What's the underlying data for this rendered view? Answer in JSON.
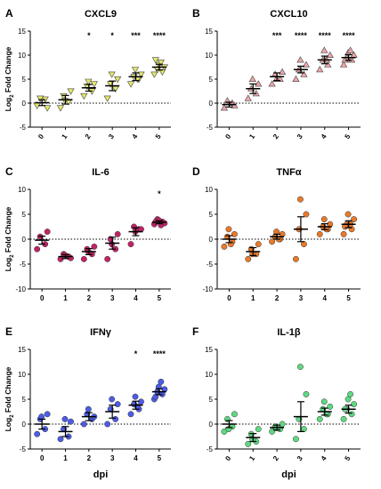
{
  "figure": {
    "xlabel_bottom": "dpi"
  },
  "chart_data": [
    {
      "panel": "A",
      "title": "CXCL9",
      "type": "scatter",
      "ylabel": "Log2 Fold Change",
      "ylim": [
        -5,
        15
      ],
      "yticks": [
        -5,
        0,
        5,
        10,
        15
      ],
      "categories": [
        "0",
        "1",
        "2",
        "3",
        "4",
        "5"
      ],
      "marker": "triangle-down",
      "color": "#e3e66a",
      "significance": [
        "",
        "",
        "*",
        "*",
        "***",
        "****"
      ],
      "means": [
        0.1,
        0.7,
        3.2,
        3.6,
        5.5,
        7.5
      ],
      "sem": [
        0.6,
        0.9,
        0.7,
        1.0,
        0.8,
        0.6
      ],
      "points": [
        [
          -0.5,
          0.8,
          1.0,
          -1.0
        ],
        [
          -1.0,
          0.3,
          1.5,
          2.5,
          0.5
        ],
        [
          1.5,
          2.5,
          3.5,
          4.0,
          4.5
        ],
        [
          1.0,
          3.0,
          4.0,
          5.0,
          6.0
        ],
        [
          4.0,
          5.0,
          5.5,
          6.0,
          7.0,
          5.0
        ],
        [
          6.0,
          6.5,
          7.0,
          7.5,
          8.0,
          8.5,
          9.0
        ]
      ]
    },
    {
      "panel": "B",
      "title": "CXCL10",
      "type": "scatter",
      "ylabel": "",
      "ylim": [
        -5,
        15
      ],
      "yticks": [
        -5,
        0,
        5,
        10,
        15
      ],
      "categories": [
        "0",
        "1",
        "2",
        "3",
        "4",
        "5"
      ],
      "marker": "triangle-up",
      "color": "#eea6aa",
      "significance": [
        "",
        "",
        "***",
        "****",
        "****",
        "****"
      ],
      "means": [
        -0.3,
        3.0,
        5.5,
        7.0,
        9.0,
        9.5
      ],
      "sem": [
        0.5,
        1.0,
        0.8,
        0.7,
        0.8,
        0.6
      ],
      "points": [
        [
          -1.0,
          0.0,
          0.5,
          -0.5
        ],
        [
          1.0,
          2.0,
          3.0,
          4.0,
          5.0
        ],
        [
          4.0,
          5.0,
          6.0,
          6.5,
          5.0
        ],
        [
          5.0,
          6.0,
          7.0,
          8.0,
          9.0
        ],
        [
          7.0,
          8.0,
          9.0,
          10.0,
          11.0,
          9.0
        ],
        [
          8.0,
          9.0,
          9.5,
          10.0,
          10.5,
          11.0,
          9.0
        ]
      ]
    },
    {
      "panel": "C",
      "title": "IL-6",
      "type": "scatter",
      "ylabel": "Log2 Fold Change",
      "ylim": [
        -10,
        10
      ],
      "yticks": [
        -10,
        -5,
        0,
        5,
        10
      ],
      "categories": [
        "0",
        "1",
        "2",
        "3",
        "4",
        "5"
      ],
      "marker": "circle",
      "color": "#c02466",
      "significance": [
        "",
        "",
        "",
        "",
        "",
        "*"
      ],
      "means": [
        -0.2,
        -3.5,
        -2.5,
        -0.8,
        1.5,
        3.4
      ],
      "sem": [
        0.8,
        0.4,
        0.6,
        1.2,
        0.8,
        0.3
      ],
      "points": [
        [
          -2.0,
          -1.0,
          0.5,
          1.5
        ],
        [
          -4.0,
          -3.5,
          -3.0,
          -3.8,
          -3.2
        ],
        [
          -4.0,
          -3.0,
          -2.0,
          -1.5,
          -2.5
        ],
        [
          -4.0,
          -2.0,
          0.0,
          1.0,
          -1.0
        ],
        [
          -1.0,
          2.0,
          2.5,
          2.0,
          1.5
        ],
        [
          3.0,
          3.5,
          4.0,
          3.2,
          3.8,
          2.8,
          3.5
        ]
      ]
    },
    {
      "panel": "D",
      "title": "TNFα",
      "type": "scatter",
      "ylabel": "",
      "ylim": [
        -10,
        10
      ],
      "yticks": [
        -10,
        -5,
        0,
        5,
        10
      ],
      "categories": [
        "0",
        "1",
        "2",
        "3",
        "4",
        "5"
      ],
      "marker": "circle",
      "color": "#e8792a",
      "significance": [
        "",
        "",
        "",
        "",
        "",
        ""
      ],
      "means": [
        0.0,
        -2.5,
        0.5,
        2.0,
        2.5,
        3.0
      ],
      "sem": [
        0.7,
        0.8,
        0.5,
        2.5,
        0.6,
        0.7
      ],
      "points": [
        [
          -1.5,
          -0.5,
          0.5,
          1.0,
          2.0,
          -1.0
        ],
        [
          -4.0,
          -3.0,
          -2.0,
          -1.0,
          -3.0
        ],
        [
          -0.5,
          0.0,
          0.5,
          1.0,
          1.5,
          0.0
        ],
        [
          -4.0,
          -1.0,
          2.0,
          5.0,
          8.0
        ],
        [
          1.0,
          2.0,
          2.5,
          3.0,
          4.0,
          2.0
        ],
        [
          1.0,
          2.0,
          3.0,
          4.0,
          5.0,
          3.0,
          2.5
        ]
      ]
    },
    {
      "panel": "E",
      "title": "IFNγ",
      "type": "scatter",
      "ylabel": "Log2 Fold Change",
      "ylim": [
        -5,
        15
      ],
      "yticks": [
        -5,
        0,
        5,
        10,
        15
      ],
      "categories": [
        "0",
        "1",
        "2",
        "3",
        "4",
        "5"
      ],
      "marker": "circle",
      "color": "#4d5ce6",
      "significance": [
        "",
        "",
        "",
        "",
        "*",
        "****"
      ],
      "means": [
        0.0,
        -1.5,
        1.5,
        2.5,
        3.8,
        6.5
      ],
      "sem": [
        1.0,
        1.0,
        0.8,
        1.3,
        0.8,
        0.6
      ],
      "points": [
        [
          -2.0,
          -1.0,
          1.0,
          2.0,
          1.5
        ],
        [
          -3.0,
          -2.5,
          -1.0,
          0.5,
          1.0
        ],
        [
          0.0,
          1.0,
          2.0,
          1.5,
          3.0
        ],
        [
          0.0,
          1.0,
          3.0,
          4.0,
          5.0
        ],
        [
          2.0,
          3.0,
          4.0,
          4.5,
          5.5,
          3.5
        ],
        [
          5.0,
          6.0,
          6.5,
          7.0,
          7.5,
          8.5,
          5.5
        ]
      ]
    },
    {
      "panel": "F",
      "title": "IL-1β",
      "type": "scatter",
      "ylabel": "",
      "ylim": [
        -5,
        15
      ],
      "yticks": [
        -5,
        0,
        5,
        10,
        15
      ],
      "categories": [
        "0",
        "1",
        "2",
        "3",
        "4",
        "5"
      ],
      "marker": "circle",
      "color": "#5fd882",
      "significance": [
        "",
        "",
        "",
        "",
        "",
        ""
      ],
      "means": [
        0.0,
        -2.7,
        -0.7,
        1.5,
        2.5,
        3.0
      ],
      "sem": [
        0.7,
        0.8,
        0.5,
        3.0,
        0.7,
        0.8
      ],
      "points": [
        [
          -1.5,
          -0.5,
          1.0,
          2.0,
          -1.0
        ],
        [
          -4.0,
          -3.5,
          -2.0,
          -1.0,
          -3.0
        ],
        [
          -1.5,
          -1.0,
          -0.5,
          0.0,
          -0.8
        ],
        [
          -3.0,
          -1.0,
          1.0,
          6.0,
          11.5
        ],
        [
          1.0,
          2.0,
          3.0,
          3.5,
          4.5,
          2.0
        ],
        [
          1.0,
          2.0,
          3.0,
          4.0,
          5.0,
          6.0,
          3.0
        ]
      ]
    }
  ]
}
